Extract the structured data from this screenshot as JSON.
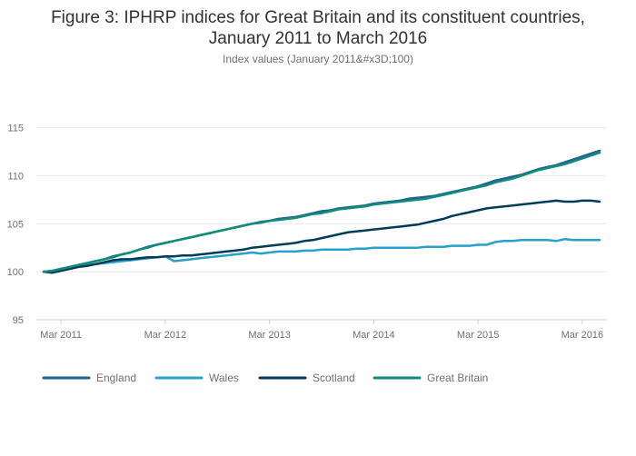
{
  "chart_data": {
    "type": "line",
    "title_line1": "Figure 3: IPHRP indices for Great Britain and its constituent countries,",
    "title_line2": "January 2011 to March 2016",
    "subtitle": "Index values (January 2011&#x3D;100)",
    "xlabel": "",
    "ylabel": "",
    "ylim": [
      95,
      116
    ],
    "y_ticks": [
      "95",
      "100",
      "105",
      "110",
      "115"
    ],
    "x_ticks": [
      "Mar 2011",
      "Mar 2012",
      "Mar 2013",
      "Mar 2014",
      "Mar 2015",
      "Mar 2016"
    ],
    "x_start": "Jan 2011",
    "x_end": "Mar 2016",
    "grid": true,
    "legend_position": "bottom",
    "series": [
      {
        "name": "England",
        "color": "#206095",
        "values": [
          100.0,
          100.1,
          100.3,
          100.5,
          100.7,
          100.9,
          101.1,
          101.3,
          101.6,
          101.8,
          102.0,
          102.3,
          102.6,
          102.8,
          103.0,
          103.2,
          103.4,
          103.6,
          103.8,
          104.0,
          104.2,
          104.4,
          104.6,
          104.8,
          105.0,
          105.2,
          105.3,
          105.5,
          105.6,
          105.7,
          105.9,
          106.1,
          106.3,
          106.4,
          106.6,
          106.7,
          106.8,
          106.9,
          107.1,
          107.2,
          107.3,
          107.4,
          107.6,
          107.7,
          107.8,
          107.9,
          108.1,
          108.3,
          108.5,
          108.7,
          108.9,
          109.2,
          109.5,
          109.7,
          109.9,
          110.1,
          110.4,
          110.7,
          110.9,
          111.1,
          111.4,
          111.7,
          112.0,
          112.3,
          112.6
        ]
      },
      {
        "name": "Wales",
        "color": "#27a0cc",
        "values": [
          100.0,
          100.1,
          100.2,
          100.4,
          100.6,
          100.7,
          100.8,
          100.9,
          101.0,
          101.1,
          101.2,
          101.3,
          101.4,
          101.5,
          101.6,
          101.1,
          101.2,
          101.3,
          101.4,
          101.5,
          101.6,
          101.7,
          101.8,
          101.9,
          102.0,
          101.9,
          102.0,
          102.1,
          102.1,
          102.1,
          102.2,
          102.2,
          102.3,
          102.3,
          102.3,
          102.3,
          102.4,
          102.4,
          102.5,
          102.5,
          102.5,
          102.5,
          102.5,
          102.5,
          102.6,
          102.6,
          102.6,
          102.7,
          102.7,
          102.7,
          102.8,
          102.8,
          103.1,
          103.2,
          103.2,
          103.3,
          103.3,
          103.3,
          103.3,
          103.2,
          103.4,
          103.3,
          103.3,
          103.3,
          103.3
        ]
      },
      {
        "name": "Scotland",
        "color": "#003c57",
        "values": [
          100.0,
          99.9,
          100.1,
          100.3,
          100.5,
          100.6,
          100.8,
          101.0,
          101.2,
          101.3,
          101.3,
          101.4,
          101.5,
          101.5,
          101.6,
          101.6,
          101.7,
          101.7,
          101.8,
          101.9,
          102.0,
          102.1,
          102.2,
          102.3,
          102.5,
          102.6,
          102.7,
          102.8,
          102.9,
          103.0,
          103.2,
          103.3,
          103.5,
          103.7,
          103.9,
          104.1,
          104.2,
          104.3,
          104.4,
          104.5,
          104.6,
          104.7,
          104.8,
          104.9,
          105.1,
          105.3,
          105.5,
          105.8,
          106.0,
          106.2,
          106.4,
          106.6,
          106.7,
          106.8,
          106.9,
          107.0,
          107.1,
          107.2,
          107.3,
          107.4,
          107.3,
          107.3,
          107.4,
          107.4,
          107.3
        ]
      },
      {
        "name": "Great Britain",
        "color": "#118c7b",
        "values": [
          100.0,
          100.1,
          100.3,
          100.5,
          100.7,
          100.9,
          101.1,
          101.3,
          101.5,
          101.8,
          102.0,
          102.3,
          102.5,
          102.8,
          103.0,
          103.2,
          103.4,
          103.6,
          103.8,
          104.0,
          104.2,
          104.4,
          104.6,
          104.8,
          105.0,
          105.1,
          105.3,
          105.4,
          105.5,
          105.6,
          105.8,
          106.0,
          106.1,
          106.3,
          106.5,
          106.6,
          106.7,
          106.8,
          107.0,
          107.1,
          107.2,
          107.3,
          107.4,
          107.5,
          107.6,
          107.8,
          108.0,
          108.2,
          108.4,
          108.6,
          108.8,
          109.0,
          109.3,
          109.5,
          109.7,
          110.0,
          110.3,
          110.6,
          110.8,
          111.0,
          111.2,
          111.5,
          111.8,
          112.1,
          112.4
        ]
      }
    ]
  }
}
